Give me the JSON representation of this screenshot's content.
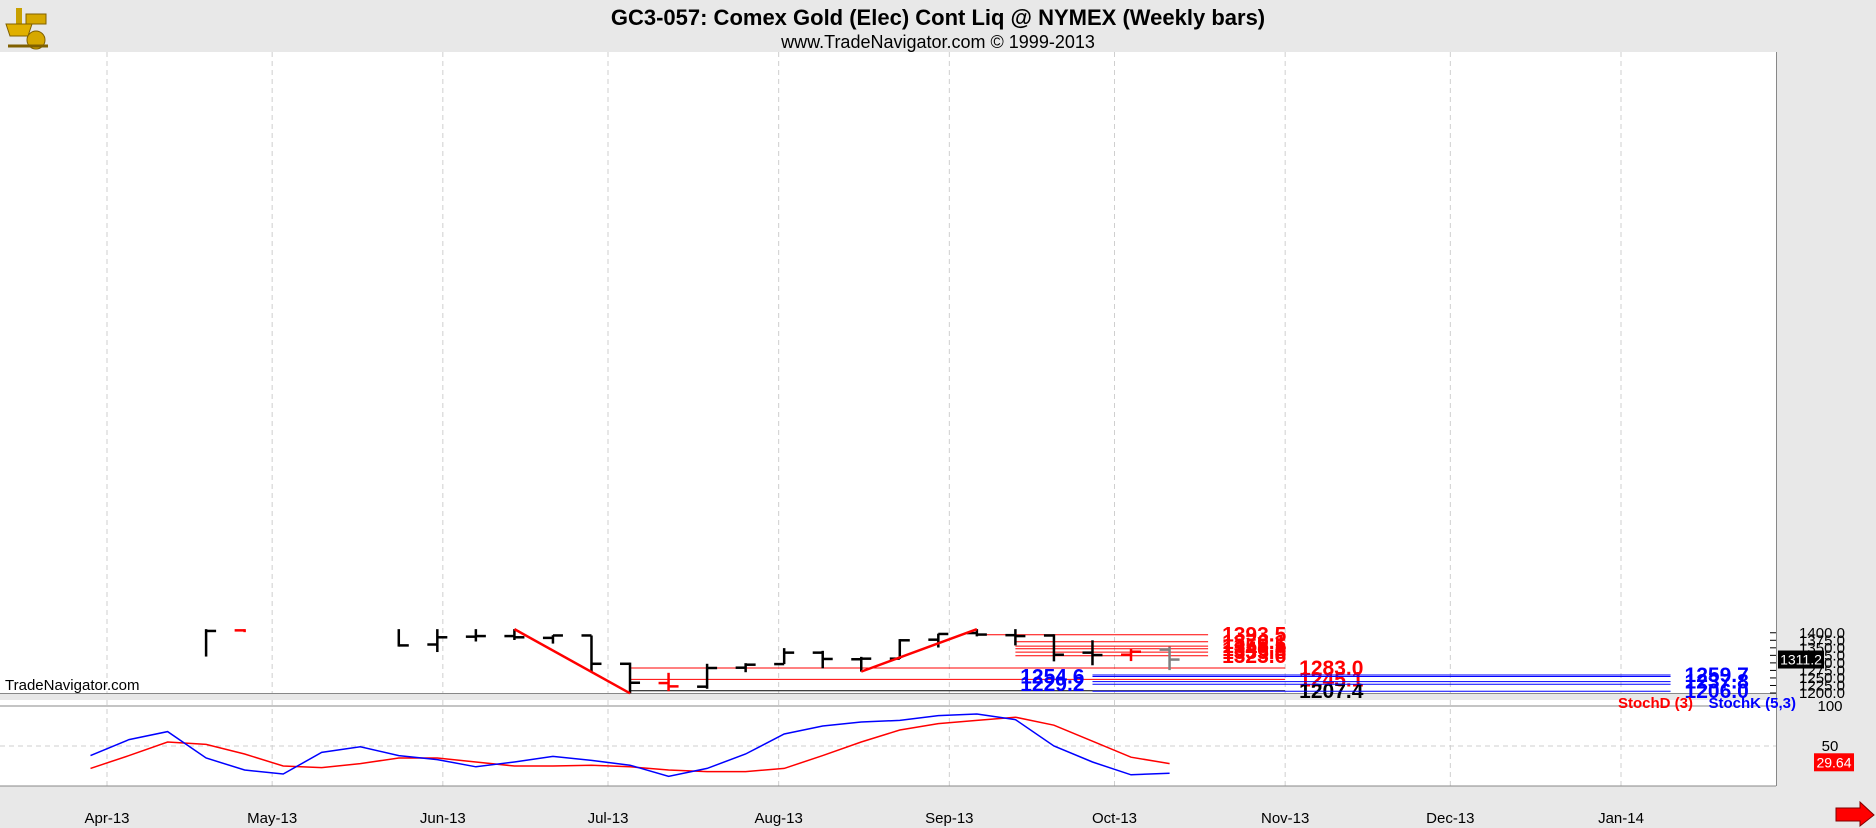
{
  "header": {
    "title": "GC3-057:  Comex Gold (Elec) Cont Liq @ NYMEX  (Weekly bars)",
    "subtitle": "www.TradeNavigator.com © 1999-2013",
    "watermark": "TradeNavigator.com"
  },
  "colors": {
    "background": "#ffffff",
    "frame": "#e8e8e8",
    "bar_up": "#000000",
    "bar_red": "#ff0000",
    "bar_current": "#808080",
    "level_red": "#ff0000",
    "level_blue": "#0000ff",
    "trend_line": "#ff0000",
    "stoch_d": "#ff0000",
    "stoch_k": "#0000ff",
    "current_price_bg": "#000000",
    "current_stoch_bg": "#ff0000"
  },
  "chart_data": [
    {
      "type": "ohlc",
      "bar_interval": "weekly",
      "x_tick_labels": [
        "Apr-13",
        "May-13",
        "Jun-13",
        "Jul-13",
        "Aug-13",
        "Sep-13",
        "Oct-13",
        "Nov-13",
        "Dec-13",
        "Jan-14"
      ],
      "y_tick_labels": [
        "1200.0",
        "1225.0",
        "1250.0",
        "1275.0",
        "1300.0",
        "1325.0",
        "1350.0",
        "1375.0",
        "1400.0"
      ],
      "ylim": [
        1199,
        1412
      ],
      "grid": true,
      "bars": [
        {
          "date": "2013-04-19",
          "open": null,
          "high": 1412,
          "low": 1321,
          "close": 1406,
          "color": "black"
        },
        {
          "date": "2013-04-26",
          "open": 1408,
          "high": 1412,
          "low": 1402,
          "close": null,
          "color": "red"
        },
        {
          "date": "2013-05-24",
          "open": null,
          "high": 1412,
          "low": 1354,
          "close": 1358,
          "color": "black"
        },
        {
          "date": "2013-05-31",
          "open": 1361,
          "high": 1412,
          "low": 1336,
          "close": 1385,
          "color": "black"
        },
        {
          "date": "2013-06-07",
          "open": 1387,
          "high": 1412,
          "low": 1371,
          "close": 1389,
          "color": "black"
        },
        {
          "date": "2013-06-14",
          "open": 1389,
          "high": 1412,
          "low": 1376,
          "close": 1385,
          "color": "black"
        },
        {
          "date": "2013-06-21",
          "open": 1383,
          "high": 1392,
          "low": 1364,
          "close": 1391,
          "color": "black"
        },
        {
          "date": "2013-06-28",
          "open": 1391,
          "high": 1391,
          "low": 1268,
          "close": 1297,
          "color": "black"
        },
        {
          "date": "2013-07-05",
          "open": 1297,
          "high": 1301,
          "low": 1199,
          "close": 1234,
          "color": "black"
        },
        {
          "date": "2013-07-12",
          "open": 1233,
          "high": 1267,
          "low": 1206,
          "close": 1222,
          "color": "red"
        },
        {
          "date": "2013-07-19",
          "open": 1221,
          "high": 1297,
          "low": 1214,
          "close": 1283,
          "color": "black"
        },
        {
          "date": "2013-07-26",
          "open": 1284,
          "high": 1299,
          "low": 1269,
          "close": 1294,
          "color": "black"
        },
        {
          "date": "2013-08-02",
          "open": 1296,
          "high": 1349,
          "low": 1296,
          "close": 1334,
          "color": "black"
        },
        {
          "date": "2013-08-09",
          "open": 1334,
          "high": 1340,
          "low": 1282,
          "close": 1313,
          "color": "black"
        },
        {
          "date": "2013-08-16",
          "open": 1312,
          "high": 1320,
          "low": 1271,
          "close": 1314,
          "color": "black"
        },
        {
          "date": "2013-08-23",
          "open": 1314,
          "high": 1379,
          "low": 1313,
          "close": 1375,
          "color": "black"
        },
        {
          "date": "2013-08-30",
          "open": 1377,
          "high": 1397,
          "low": 1351,
          "close": 1396,
          "color": "black"
        },
        {
          "date": "2013-09-06",
          "open": 1399,
          "high": 1412,
          "low": 1388,
          "close": 1394,
          "color": "black"
        },
        {
          "date": "2013-09-13",
          "open": 1392,
          "high": 1412,
          "low": 1358,
          "close": 1389,
          "color": "black"
        },
        {
          "date": "2013-09-20",
          "open": 1391,
          "high": 1395,
          "low": 1305,
          "close": 1327,
          "color": "black"
        },
        {
          "date": "2013-09-27",
          "open": 1334,
          "high": 1375,
          "low": 1292,
          "close": 1326,
          "color": "black"
        },
        {
          "date": "2013-10-04",
          "open": 1327,
          "high": 1346,
          "low": 1306,
          "close": 1337,
          "color": "red"
        },
        {
          "date": "2013-10-11",
          "open": 1344,
          "high": 1354,
          "low": 1276,
          "close": 1311,
          "color": "gray"
        }
      ],
      "trend_lines": [
        {
          "from": {
            "date": "2013-06-14",
            "price": 1412
          },
          "to": {
            "date": "2013-07-05",
            "price": 1199
          },
          "color": "red"
        },
        {
          "from": {
            "date": "2013-08-16",
            "price": 1271
          },
          "to": {
            "date": "2013-09-06",
            "price": 1412
          },
          "color": "red"
        }
      ],
      "levels": [
        {
          "value": 1393.5,
          "label": "1393.5",
          "color": "red",
          "from": "2013-09-06",
          "to": "2013-10-18",
          "label_side": "right"
        },
        {
          "value": 1370.1,
          "label": "1370.1",
          "color": "red",
          "from": "2013-09-13",
          "to": "2013-10-18",
          "label_side": "right"
        },
        {
          "value": 1355.5,
          "label": "1355.5",
          "color": "red",
          "from": "2013-09-13",
          "to": "2013-10-18",
          "label_side": "right"
        },
        {
          "value": 1346.8,
          "label": "1346.8",
          "color": "red",
          "from": "2013-09-13",
          "to": "2013-10-18",
          "label_side": "right"
        },
        {
          "value": 1335.8,
          "label": "1335.8",
          "color": "red",
          "from": "2013-09-13",
          "to": "2013-10-18",
          "label_side": "right"
        },
        {
          "value": 1323.6,
          "label": "1323.6",
          "color": "red",
          "from": "2013-09-13",
          "to": "2013-10-18",
          "label_side": "right"
        },
        {
          "value": 1283.0,
          "label": "1283.0",
          "color": "red",
          "from": "2013-07-05",
          "to": "2013-11-01",
          "label_side": "right"
        },
        {
          "value": 1245.1,
          "label": "1245.1",
          "color": "red",
          "from": "2013-07-05",
          "to": "2013-11-01",
          "label_side": "right"
        },
        {
          "value": 1207.4,
          "label": "1207.4",
          "color": "black",
          "from": "2013-07-05",
          "to": "2013-11-01",
          "label_side": "right"
        },
        {
          "value": 1259.7,
          "label": "1259.7",
          "color": "blue",
          "from": "2013-09-27",
          "to": "2014-01-10",
          "label_side": "right"
        },
        {
          "value": 1254.6,
          "label": "1254.6",
          "color": "blue",
          "from": "2013-09-27",
          "to": "2014-01-10",
          "label_side": "left"
        },
        {
          "value": 1237.8,
          "label": "1237.8",
          "color": "blue",
          "from": "2013-09-27",
          "to": "2014-01-10",
          "label_side": "right"
        },
        {
          "value": 1229.2,
          "label": "1229.2",
          "color": "blue",
          "from": "2013-09-27",
          "to": "2014-01-10",
          "label_side": "left"
        },
        {
          "value": 1206.0,
          "label": "1206.0",
          "color": "blue",
          "from": "2013-09-27",
          "to": "2014-01-10",
          "label_side": "right"
        }
      ],
      "last_price": "1311.2"
    },
    {
      "type": "line",
      "title": "StochD (3)  StochK (5,3)",
      "x_dates": [
        "2013-03-29",
        "2013-04-05",
        "2013-04-12",
        "2013-04-19",
        "2013-04-26",
        "2013-05-03",
        "2013-05-10",
        "2013-05-17",
        "2013-05-24",
        "2013-05-31",
        "2013-06-07",
        "2013-06-14",
        "2013-06-21",
        "2013-06-28",
        "2013-07-05",
        "2013-07-12",
        "2013-07-19",
        "2013-07-26",
        "2013-08-02",
        "2013-08-09",
        "2013-08-16",
        "2013-08-23",
        "2013-08-30",
        "2013-09-06",
        "2013-09-13",
        "2013-09-20",
        "2013-09-27",
        "2013-10-04",
        "2013-10-11"
      ],
      "y_tick_labels": [
        "50",
        "100"
      ],
      "ylim": [
        0,
        100
      ],
      "series": [
        {
          "name": "StochD (3)",
          "color": "red",
          "values": [
            22,
            38,
            55,
            52,
            40,
            25,
            23,
            28,
            35,
            35,
            30,
            25,
            25,
            26,
            24,
            20,
            18,
            18,
            22,
            38,
            55,
            70,
            78,
            82,
            86,
            76,
            56,
            36,
            28
          ]
        },
        {
          "name": "StochK (5,3)",
          "color": "blue",
          "values": [
            38,
            58,
            68,
            35,
            20,
            15,
            42,
            49,
            38,
            33,
            24,
            30,
            37,
            32,
            26,
            12,
            22,
            40,
            65,
            75,
            80,
            82,
            88,
            90,
            83,
            50,
            30,
            14,
            16
          ]
        }
      ],
      "last_value": "29.64"
    }
  ]
}
